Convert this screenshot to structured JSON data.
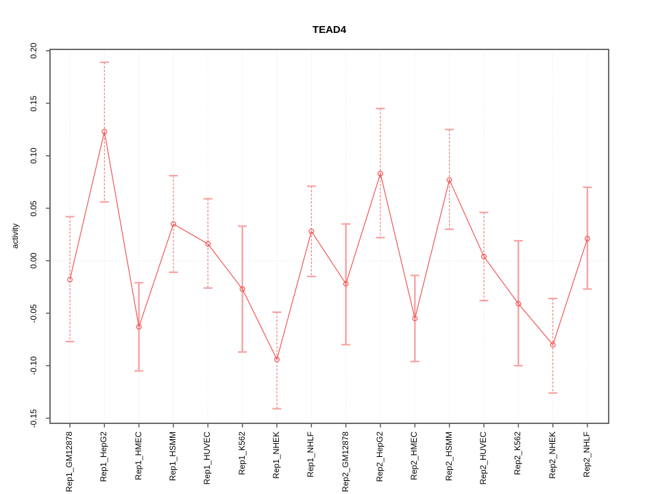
{
  "chart_data": {
    "type": "line",
    "title": "TEAD4",
    "ylabel": "activity",
    "xlabel": "",
    "marker": "open-circle",
    "legend": "none",
    "grid": "vertical dotted gridline at every category; dotted horizontal line at y=0",
    "ylim": [
      -0.155,
      0.201
    ],
    "ytick_labels": [
      "0.20",
      "0.15",
      "0.10",
      "0.05",
      "0.00",
      "-0.05",
      "-0.10",
      "-0.15"
    ],
    "ytick_values": [
      0.2,
      0.15,
      0.1,
      0.05,
      0.0,
      -0.05,
      -0.1,
      -0.15
    ],
    "categories": [
      "Rep1_GM12878",
      "Rep1_HepG2",
      "Rep1_HMEC",
      "Rep1_HSMM",
      "Rep1_HUVEC",
      "Rep1_K562",
      "Rep1_NHEK",
      "Rep1_NHLF",
      "Rep2_GM12878",
      "Rep2_HepG2",
      "Rep2_HMEC",
      "Rep2_HSMM",
      "Rep2_HUVEC",
      "Rep2_K562",
      "Rep2_NHEK",
      "Rep2_NHLF"
    ],
    "series": [
      {
        "name": "activity",
        "values": [
          -0.018,
          0.123,
          -0.063,
          0.035,
          0.016,
          -0.027,
          -0.094,
          0.028,
          -0.022,
          0.083,
          -0.055,
          0.077,
          0.004,
          -0.041,
          -0.08,
          0.021
        ],
        "ci_upper": [
          0.042,
          0.189,
          -0.021,
          0.081,
          0.059,
          0.033,
          -0.049,
          0.071,
          0.035,
          0.145,
          -0.014,
          0.125,
          0.046,
          0.019,
          -0.036,
          0.07
        ],
        "ci_lower": [
          -0.077,
          0.056,
          -0.105,
          -0.011,
          -0.026,
          -0.087,
          -0.141,
          -0.015,
          -0.08,
          0.022,
          -0.096,
          0.03,
          -0.038,
          -0.1,
          -0.126,
          -0.027
        ],
        "errorbar_styles": [
          "dashed",
          "dashed",
          "solid",
          "dashed",
          "dashed",
          "solid",
          "dashed",
          "dashed",
          "solid",
          "dashed",
          "solid",
          "dashed",
          "dashed",
          "solid",
          "dashed",
          "solid"
        ]
      }
    ],
    "colors": {
      "line": "#f25555",
      "point": "#f25555",
      "errorbar_dashed": "#f26b6b",
      "errorbar_solid": "#f7a2a2",
      "errorbar_cap": "#f7a2a2",
      "grid": "#dedede",
      "axis": "#595959",
      "text": "#000000",
      "background": "#ffffff"
    }
  }
}
